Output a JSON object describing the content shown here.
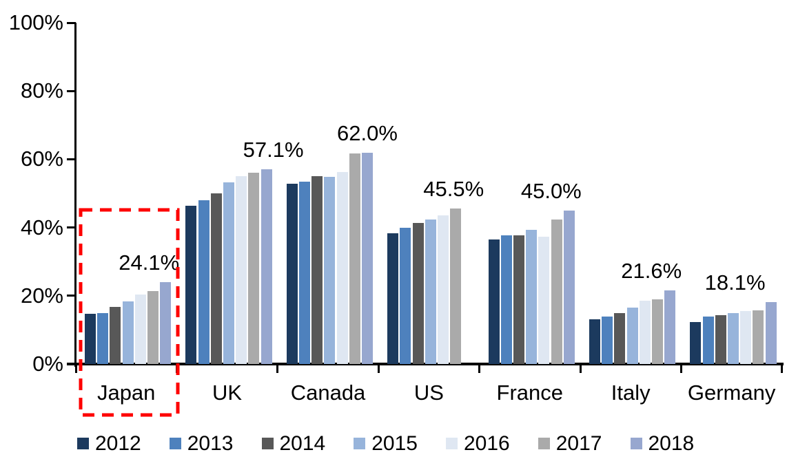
{
  "chart_data": {
    "type": "bar",
    "title": "",
    "categories": [
      "Japan",
      "UK",
      "Canada",
      "US",
      "France",
      "Italy",
      "Germany"
    ],
    "series": [
      {
        "name": "2012",
        "color": "#1C3A5E",
        "values": [
          14.8,
          46.4,
          52.9,
          38.3,
          36.5,
          13.2,
          12.3
        ]
      },
      {
        "name": "2013",
        "color": "#4E81BD",
        "values": [
          15.0,
          47.9,
          53.4,
          40.0,
          37.7,
          14.0,
          13.9
        ]
      },
      {
        "name": "2014",
        "color": "#585858",
        "values": [
          16.7,
          50.0,
          55.0,
          41.3,
          37.7,
          14.9,
          14.3
        ]
      },
      {
        "name": "2015",
        "color": "#97B4DB",
        "values": [
          18.3,
          53.2,
          54.9,
          42.4,
          39.4,
          16.5,
          14.9
        ]
      },
      {
        "name": "2016",
        "color": "#DFE7F2",
        "values": [
          20.3,
          55.0,
          56.2,
          43.6,
          37.4,
          18.6,
          15.5
        ]
      },
      {
        "name": "2017",
        "color": "#AAAAAA",
        "values": [
          21.3,
          56.0,
          61.7,
          45.5,
          42.3,
          18.9,
          15.7
        ]
      },
      {
        "name": "2018",
        "color": "#97A7CF",
        "values": [
          24.1,
          57.1,
          62.0,
          null,
          45.0,
          21.6,
          18.1
        ]
      }
    ],
    "annotations": [
      {
        "category": "Japan",
        "text": "24.1%"
      },
      {
        "category": "UK",
        "text": "57.1%"
      },
      {
        "category": "Canada",
        "text": "62.0%"
      },
      {
        "category": "US",
        "text": "45.5%"
      },
      {
        "category": "France",
        "text": "45.0%"
      },
      {
        "category": "Italy",
        "text": "21.6%"
      },
      {
        "category": "Germany",
        "text": "18.1%"
      }
    ],
    "y_ticks": [
      "0%",
      "20%",
      "40%",
      "60%",
      "80%",
      "100%"
    ],
    "ylim": [
      0,
      100
    ],
    "grid": false,
    "legend_position": "bottom",
    "highlight": {
      "category": "Japan",
      "color": "#FE0000",
      "style": "dashed-box"
    }
  }
}
